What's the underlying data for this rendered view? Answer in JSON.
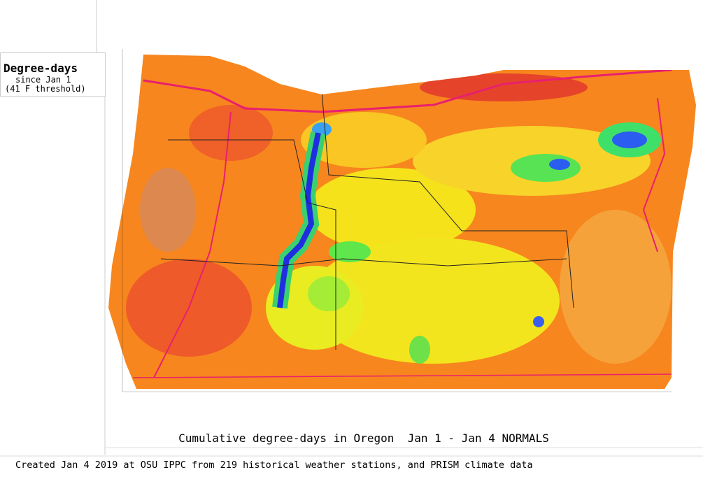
{
  "legend": {
    "title": "Degree-days",
    "line1": "since Jan 1",
    "line2": "(41 F threshold)"
  },
  "map": {
    "title": "Cumulative degree-days in Oregon  Jan 1 - Jan 4 NORMALS"
  },
  "footer": {
    "credit": "Created Jan 4 2019 at OSU IPPC from 219 historical weather stations, and PRISM climate data"
  }
}
